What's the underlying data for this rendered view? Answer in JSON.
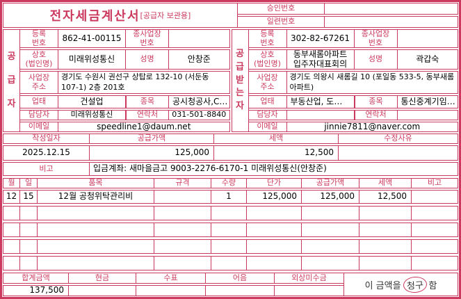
{
  "colors": {
    "accent": "#cb3a5e"
  },
  "title": {
    "main": "전자세금계산서",
    "sub": "[공급자 보관용]"
  },
  "top_right": {
    "approval_label": "승인번호",
    "approval_value": "",
    "serial_label": "일련번호",
    "serial_value": ""
  },
  "supplier": {
    "party_label": "공급자",
    "reg_no_label": "등록\n번호",
    "reg_no": "862-41-00115",
    "sub_biz_label": "종사업장\n번호",
    "sub_biz": "",
    "name_label": "상호\n(법인명)",
    "name": "미래위성통신",
    "ceo_label": "성명",
    "ceo": "안창준",
    "addr_label": "사업장\n주소",
    "addr": "경기도 수원시 권선구 상탑로 132-10 (서둔동 107-1) 2층 201호",
    "biz_type_label": "업태",
    "biz_type": "건설업",
    "item_label": "종목",
    "item": "공시청공사,C…",
    "contact_label": "담당자",
    "contact": "미래위성통신",
    "phone_label": "연락처",
    "phone": "031-501-8840",
    "email_label": "이메일",
    "email": "speedline1@daum.net"
  },
  "buyer": {
    "party_label": "공급받는자",
    "reg_no_label": "등록\n번호",
    "reg_no": "302-82-67261",
    "sub_biz_label": "종사업장\n번호",
    "sub_biz": "",
    "name_label": "상호\n(법인명)",
    "name": "동부새롬아파트\n입주자대표회의",
    "ceo_label": "성명",
    "ceo": "곽갑숙",
    "addr_label": "사업장\n주소",
    "addr": "경기도 의왕시 새롬길 10 (포일동 533-5, 동부새롬아파트)",
    "biz_type_label": "업태",
    "biz_type": "부동산업, 도…",
    "item_label": "종목",
    "item": "통신중계기임…",
    "contact_label": "담당자",
    "contact": "",
    "phone_label": "연락처",
    "phone": "",
    "email_label": "이메일",
    "email": "jinnie7811@naver.com"
  },
  "summary": {
    "date_label": "작성일자",
    "date": "2025.12.15",
    "supply_label": "공급가액",
    "supply": "125,000",
    "tax_label": "세액",
    "tax": "12,500",
    "reason_label": "수정사유",
    "reason": "",
    "note_label": "비고",
    "note": "입금계좌: 새마을금고 9003-2276-6170-1 미래위성통신(안창준)"
  },
  "items": {
    "headers": [
      "월",
      "일",
      "품목",
      "규격",
      "수량",
      "단가",
      "공급가액",
      "세액",
      "비고"
    ],
    "rows": [
      {
        "month": "12",
        "day": "15",
        "name": "12월 공청위탁관리비",
        "spec": "",
        "qty": "1",
        "unit_price": "125,000",
        "supply": "125,000",
        "tax": "12,500",
        "note": ""
      },
      {
        "month": "",
        "day": "",
        "name": "",
        "spec": "",
        "qty": "",
        "unit_price": "",
        "supply": "",
        "tax": "",
        "note": ""
      },
      {
        "month": "",
        "day": "",
        "name": "",
        "spec": "",
        "qty": "",
        "unit_price": "",
        "supply": "",
        "tax": "",
        "note": ""
      },
      {
        "month": "",
        "day": "",
        "name": "",
        "spec": "",
        "qty": "",
        "unit_price": "",
        "supply": "",
        "tax": "",
        "note": ""
      },
      {
        "month": "",
        "day": "",
        "name": "",
        "spec": "",
        "qty": "",
        "unit_price": "",
        "supply": "",
        "tax": "",
        "note": ""
      }
    ]
  },
  "totals": {
    "total_label": "합계금액",
    "total": "137,500",
    "cash_label": "현금",
    "cash": "",
    "check_label": "수표",
    "check": "",
    "bill_label": "어음",
    "bill": "",
    "credit_label": "외상미수금",
    "credit": "",
    "claim_prefix": "이 금액을",
    "claim_word": "청구",
    "claim_suffix": "함"
  }
}
